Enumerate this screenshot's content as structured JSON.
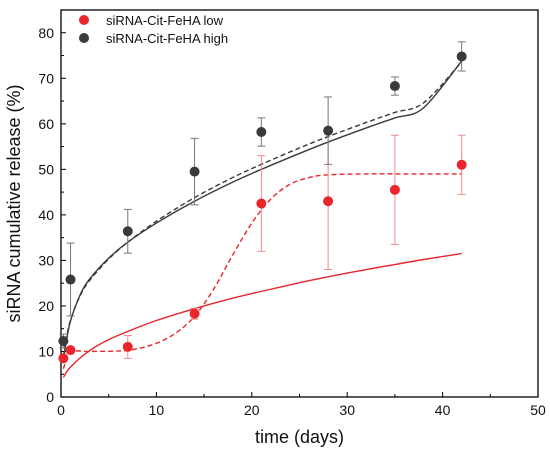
{
  "chart_data": {
    "type": "scatter",
    "title": "",
    "xlabel": "time (days)",
    "ylabel": "siRNA cumulative release (%)",
    "xlim": [
      0,
      50
    ],
    "ylim": [
      0,
      85
    ],
    "xticks": [
      "0",
      "10",
      "20",
      "30",
      "40",
      "50"
    ],
    "yticks": [
      "0",
      "10",
      "20",
      "30",
      "40",
      "50",
      "60",
      "70",
      "80"
    ],
    "grid": false,
    "legend_position": "top-left",
    "series": [
      {
        "name": "siRNA-Cit-FeHA low",
        "color": "#e8262b",
        "x": [
          0.25,
          1,
          7,
          14,
          21,
          28,
          35,
          42
        ],
        "y": [
          8.5,
          10.3,
          11,
          18.3,
          42.5,
          43,
          45.5,
          51
        ],
        "error": [
          0,
          0,
          2.5,
          1.2,
          10.5,
          15,
          12,
          6.5
        ],
        "fit_solid": {
          "x": [
            0.25,
            1,
            3,
            5,
            7,
            10,
            14,
            18,
            21,
            25,
            28,
            32,
            35,
            38,
            42
          ],
          "y": [
            4.3,
            6.6,
            10.2,
            12.6,
            14.4,
            16.8,
            19.4,
            21.7,
            23.2,
            25.1,
            26.4,
            28.0,
            29.1,
            30.2,
            31.5
          ]
        },
        "fit_dashed": {
          "x": [
            0.25,
            1,
            3,
            6,
            8,
            10,
            12,
            14,
            16,
            18,
            20,
            22,
            24,
            26,
            28,
            32,
            36,
            42
          ],
          "y": [
            6.2,
            9.8,
            10.0,
            10.1,
            10.6,
            11.8,
            14.0,
            17.7,
            23.7,
            31.2,
            38.2,
            43.5,
            46.7,
            48.2,
            48.8,
            49.0,
            49.0,
            49.0
          ]
        }
      },
      {
        "name": "siRNA-Cit-FeHA high",
        "color": "#3a3a3a",
        "x": [
          0.25,
          1,
          7,
          14,
          21,
          28,
          35,
          42
        ],
        "y": [
          12.3,
          25.8,
          36.4,
          49.5,
          58.2,
          58.5,
          68.3,
          74.8
        ],
        "error": [
          1.5,
          8.0,
          4.8,
          7.3,
          3.1,
          7.4,
          2.0,
          3.2
        ],
        "fit_solid": {
          "x": [
            0.25,
            0.5,
            1,
            2,
            3,
            5,
            7,
            10,
            14,
            18,
            21,
            25,
            28,
            32,
            35,
            38,
            42
          ],
          "y": [
            7.8,
            11.5,
            16.7,
            22.4,
            25.9,
            30.5,
            34.0,
            38.2,
            43.0,
            47.2,
            50.0,
            53.5,
            56.0,
            59.1,
            61.3,
            63.5,
            73.8
          ]
        },
        "fit_dashed": {
          "x": [
            0.25,
            0.5,
            1,
            2,
            3,
            5,
            7,
            10,
            14,
            18,
            21,
            25,
            28,
            32,
            35,
            38,
            42
          ],
          "y": [
            8.8,
            12.2,
            16.9,
            22.2,
            25.6,
            30.3,
            34.0,
            38.6,
            43.8,
            48.2,
            51.1,
            54.7,
            57.2,
            60.3,
            62.5,
            64.6,
            73.6
          ]
        }
      }
    ]
  }
}
